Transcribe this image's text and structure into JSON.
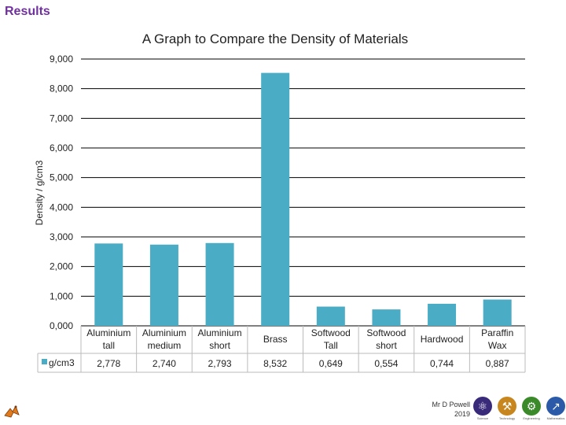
{
  "slide": {
    "title": "Results"
  },
  "footer": {
    "author": "Mr D Powell",
    "year": "2019"
  },
  "logos": [
    {
      "icon": "atom-icon",
      "caption": "Science",
      "color": "#3a2a7a"
    },
    {
      "icon": "tools-icon",
      "caption": "Technology",
      "color": "#c8861e"
    },
    {
      "icon": "gears-icon",
      "caption": "Engineering",
      "color": "#3a8a2a"
    },
    {
      "icon": "graph-icon",
      "caption": "Mathematics",
      "color": "#2a5aa8"
    }
  ],
  "chart_data": {
    "type": "bar",
    "title": "A Graph to Compare the Density of Materials",
    "ylabel": "Density / g/cm3",
    "xlabel": "",
    "ylim": [
      0,
      9
    ],
    "y_ticks": [
      "0,000",
      "1,000",
      "2,000",
      "3,000",
      "4,000",
      "5,000",
      "6,000",
      "7,000",
      "8,000",
      "9,000"
    ],
    "grid": true,
    "bar_color": "#4bacc6",
    "categories": [
      [
        "Aluminium",
        "tall"
      ],
      [
        "Aluminium",
        "medium"
      ],
      [
        "Aluminium",
        "short"
      ],
      [
        "Brass"
      ],
      [
        "Softwood",
        "Tall"
      ],
      [
        "Softwood",
        "short"
      ],
      [
        "Hardwood"
      ],
      [
        "Paraffin",
        "Wax"
      ]
    ],
    "series": [
      {
        "name": "g/cm3",
        "values": [
          2.778,
          2.74,
          2.793,
          8.532,
          0.649,
          0.554,
          0.744,
          0.887
        ],
        "labels": [
          "2,778",
          "2,740",
          "2,793",
          "8,532",
          "0,649",
          "0,554",
          "0,744",
          "0,887"
        ]
      }
    ]
  }
}
